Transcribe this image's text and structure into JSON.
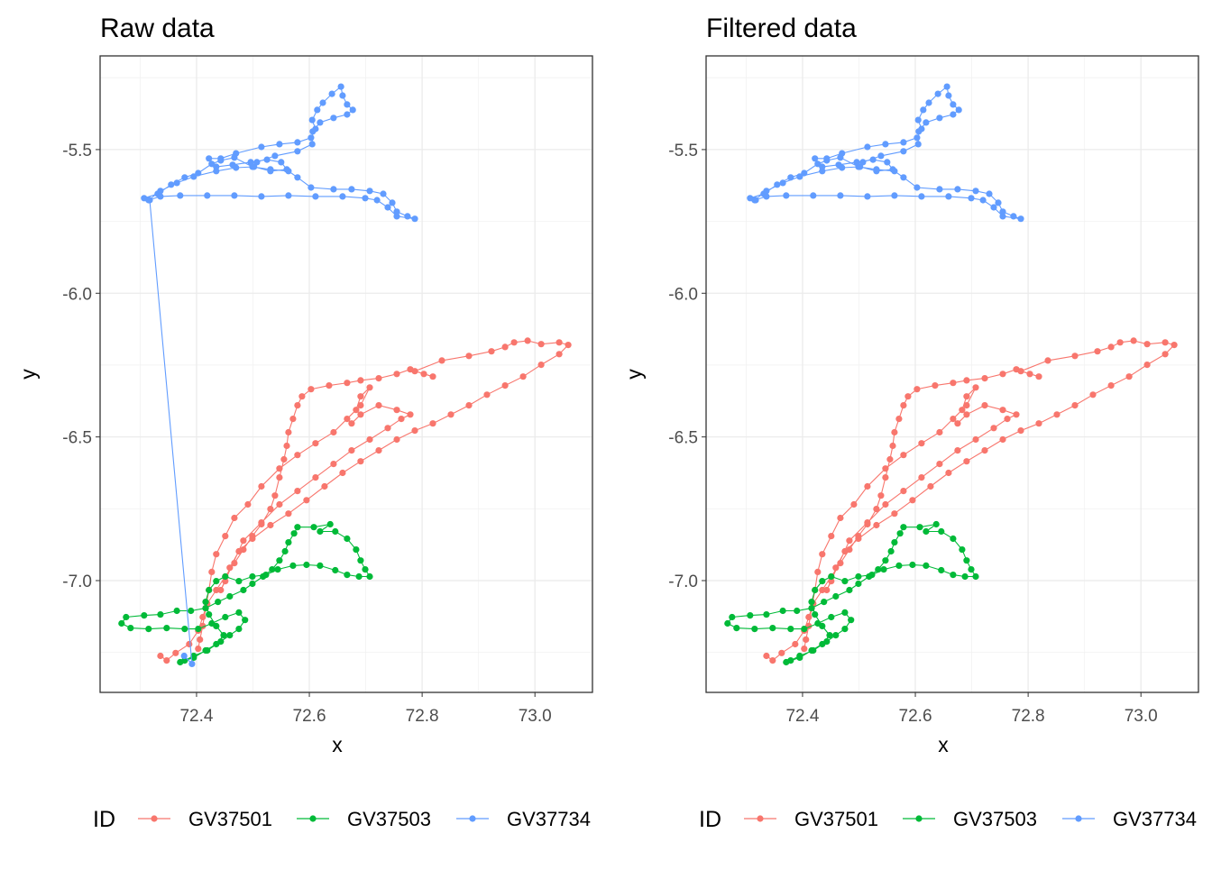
{
  "colors": {
    "GV37501": "#F8766D",
    "GV37503": "#00BA38",
    "GV37734": "#619CFF"
  },
  "legend": {
    "title": "ID",
    "entries": [
      "GV37501",
      "GV37503",
      "GV37734"
    ]
  },
  "chart_data": [
    {
      "type": "line",
      "title": "Raw data",
      "xlabel": "x",
      "ylabel": "y",
      "xlim": [
        72.229,
        73.102
      ],
      "ylim": [
        -7.389,
        -5.174
      ],
      "xticks": [
        72.4,
        72.6,
        72.8,
        73.0
      ],
      "xtick_labels": [
        "72.4",
        "72.6",
        "72.8",
        "73.0"
      ],
      "yticks": [
        -5.5,
        -6.0,
        -6.5,
        -7.0
      ],
      "ytick_labels": [
        "-5.5",
        "-6.0",
        "-6.5",
        "-7.0"
      ],
      "grid": true,
      "legend_position": "bottom",
      "series": [
        {
          "name": "GV37501",
          "points": [
            [
              72.336,
              -7.262
            ],
            [
              72.347,
              -7.278
            ],
            [
              72.363,
              -7.252
            ],
            [
              72.387,
              -7.221
            ],
            [
              72.403,
              -7.174
            ],
            [
              72.411,
              -7.127
            ],
            [
              72.419,
              -7.08
            ],
            [
              72.435,
              -7.033
            ],
            [
              72.451,
              -6.986
            ],
            [
              72.467,
              -6.939
            ],
            [
              72.483,
              -6.892
            ],
            [
              72.499,
              -6.845
            ],
            [
              72.515,
              -6.804
            ],
            [
              72.531,
              -6.751
            ],
            [
              72.539,
              -6.704
            ],
            [
              72.547,
              -6.641
            ],
            [
              72.555,
              -6.578
            ],
            [
              72.56,
              -6.531
            ],
            [
              72.563,
              -6.484
            ],
            [
              72.571,
              -6.437
            ],
            [
              72.579,
              -6.39
            ],
            [
              72.587,
              -6.359
            ],
            [
              72.603,
              -6.334
            ],
            [
              72.635,
              -6.321
            ],
            [
              72.667,
              -6.312
            ],
            [
              72.691,
              -6.303
            ],
            [
              72.723,
              -6.296
            ],
            [
              72.755,
              -6.281
            ],
            [
              72.779,
              -6.265
            ],
            [
              72.803,
              -6.281
            ],
            [
              72.819,
              -6.29
            ],
            [
              72.787,
              -6.271
            ],
            [
              72.835,
              -6.234
            ],
            [
              72.883,
              -6.218
            ],
            [
              72.923,
              -6.202
            ],
            [
              72.947,
              -6.187
            ],
            [
              72.963,
              -6.171
            ],
            [
              72.987,
              -6.165
            ],
            [
              73.011,
              -6.177
            ],
            [
              73.043,
              -6.171
            ],
            [
              73.059,
              -6.18
            ],
            [
              73.043,
              -6.212
            ],
            [
              73.011,
              -6.249
            ],
            [
              72.979,
              -6.29
            ],
            [
              72.947,
              -6.321
            ],
            [
              72.915,
              -6.353
            ],
            [
              72.883,
              -6.39
            ],
            [
              72.851,
              -6.422
            ],
            [
              72.819,
              -6.453
            ],
            [
              72.787,
              -6.478
            ],
            [
              72.755,
              -6.509
            ],
            [
              72.723,
              -6.547
            ],
            [
              72.691,
              -6.585
            ],
            [
              72.659,
              -6.625
            ],
            [
              72.627,
              -6.672
            ],
            [
              72.595,
              -6.72
            ],
            [
              72.563,
              -6.767
            ],
            [
              72.531,
              -6.807
            ],
            [
              72.499,
              -6.854
            ],
            [
              72.475,
              -6.898
            ],
            [
              72.459,
              -6.955
            ],
            [
              72.451,
              -7.002
            ],
            [
              72.443,
              -7.033
            ],
            [
              72.483,
              -6.861
            ],
            [
              72.515,
              -6.798
            ],
            [
              72.547,
              -6.735
            ],
            [
              72.579,
              -6.688
            ],
            [
              72.611,
              -6.641
            ],
            [
              72.643,
              -6.594
            ],
            [
              72.675,
              -6.547
            ],
            [
              72.707,
              -6.509
            ],
            [
              72.739,
              -6.469
            ],
            [
              72.763,
              -6.437
            ],
            [
              72.779,
              -6.422
            ],
            [
              72.755,
              -6.406
            ],
            [
              72.723,
              -6.39
            ],
            [
              72.691,
              -6.422
            ],
            [
              72.675,
              -6.453
            ],
            [
              72.667,
              -6.437
            ],
            [
              72.683,
              -6.406
            ],
            [
              72.691,
              -6.359
            ],
            [
              72.707,
              -6.328
            ],
            [
              72.691,
              -6.39
            ],
            [
              72.643,
              -6.484
            ],
            [
              72.611,
              -6.522
            ],
            [
              72.579,
              -6.563
            ],
            [
              72.547,
              -6.61
            ],
            [
              72.515,
              -6.672
            ],
            [
              72.491,
              -6.735
            ],
            [
              72.467,
              -6.782
            ],
            [
              72.451,
              -6.845
            ],
            [
              72.435,
              -6.908
            ],
            [
              72.427,
              -6.97
            ],
            [
              72.422,
              -7.033
            ],
            [
              72.416,
              -7.096
            ],
            [
              72.411,
              -7.158
            ],
            [
              72.406,
              -7.205
            ],
            [
              72.403,
              -7.237
            ]
          ]
        },
        {
          "name": "GV37503",
          "points": [
            [
              72.379,
              -7.278
            ],
            [
              72.395,
              -7.262
            ],
            [
              72.419,
              -7.243
            ],
            [
              72.443,
              -7.212
            ],
            [
              72.459,
              -7.19
            ],
            [
              72.475,
              -7.168
            ],
            [
              72.486,
              -7.137
            ],
            [
              72.475,
              -7.111
            ],
            [
              72.451,
              -7.127
            ],
            [
              72.427,
              -7.149
            ],
            [
              72.403,
              -7.168
            ],
            [
              72.379,
              -7.168
            ],
            [
              72.347,
              -7.165
            ],
            [
              72.315,
              -7.168
            ],
            [
              72.283,
              -7.165
            ],
            [
              72.267,
              -7.149
            ],
            [
              72.275,
              -7.127
            ],
            [
              72.307,
              -7.121
            ],
            [
              72.336,
              -7.118
            ],
            [
              72.365,
              -7.105
            ],
            [
              72.39,
              -7.105
            ],
            [
              72.416,
              -7.096
            ],
            [
              72.438,
              -7.074
            ],
            [
              72.459,
              -7.055
            ],
            [
              72.483,
              -7.033
            ],
            [
              72.499,
              -7.011
            ],
            [
              72.518,
              -6.986
            ],
            [
              72.534,
              -6.961
            ],
            [
              72.547,
              -6.93
            ],
            [
              72.557,
              -6.898
            ],
            [
              72.563,
              -6.867
            ],
            [
              72.573,
              -6.836
            ],
            [
              72.579,
              -6.814
            ],
            [
              72.608,
              -6.814
            ],
            [
              72.637,
              -6.804
            ],
            [
              72.619,
              -6.829
            ],
            [
              72.646,
              -6.829
            ],
            [
              72.667,
              -6.854
            ],
            [
              72.683,
              -6.892
            ],
            [
              72.691,
              -6.93
            ],
            [
              72.699,
              -6.961
            ],
            [
              72.707,
              -6.986
            ],
            [
              72.688,
              -6.986
            ],
            [
              72.667,
              -6.98
            ],
            [
              72.646,
              -6.964
            ],
            [
              72.619,
              -6.948
            ],
            [
              72.595,
              -6.945
            ],
            [
              72.571,
              -6.948
            ],
            [
              72.544,
              -6.961
            ],
            [
              72.523,
              -6.98
            ],
            [
              72.499,
              -6.986
            ],
            [
              72.475,
              -7.002
            ],
            [
              72.451,
              -6.986
            ],
            [
              72.435,
              -7.002
            ],
            [
              72.422,
              -7.033
            ],
            [
              72.416,
              -7.074
            ],
            [
              72.422,
              -7.118
            ],
            [
              72.435,
              -7.158
            ],
            [
              72.448,
              -7.19
            ],
            [
              72.435,
              -7.221
            ],
            [
              72.416,
              -7.243
            ],
            [
              72.395,
              -7.268
            ],
            [
              72.371,
              -7.284
            ]
          ]
        },
        {
          "name": "GV37734",
          "points": [
            [
              72.378,
              -7.262
            ],
            [
              72.392,
              -7.29
            ],
            [
              72.317,
              -5.676
            ],
            [
              72.307,
              -5.669
            ],
            [
              72.331,
              -5.654
            ],
            [
              72.355,
              -5.622
            ],
            [
              72.379,
              -5.597
            ],
            [
              72.403,
              -5.582
            ],
            [
              72.427,
              -5.55
            ],
            [
              72.443,
              -5.538
            ],
            [
              72.467,
              -5.528
            ],
            [
              72.499,
              -5.56
            ],
            [
              72.531,
              -5.569
            ],
            [
              72.563,
              -5.575
            ],
            [
              72.579,
              -5.597
            ],
            [
              72.603,
              -5.632
            ],
            [
              72.643,
              -5.638
            ],
            [
              72.675,
              -5.638
            ],
            [
              72.707,
              -5.644
            ],
            [
              72.731,
              -5.654
            ],
            [
              72.747,
              -5.685
            ],
            [
              72.755,
              -5.716
            ],
            [
              72.774,
              -5.732
            ],
            [
              72.787,
              -5.741
            ],
            [
              72.755,
              -5.732
            ],
            [
              72.739,
              -5.701
            ],
            [
              72.72,
              -5.676
            ],
            [
              72.699,
              -5.669
            ],
            [
              72.659,
              -5.663
            ],
            [
              72.611,
              -5.663
            ],
            [
              72.563,
              -5.66
            ],
            [
              72.515,
              -5.663
            ],
            [
              72.467,
              -5.66
            ],
            [
              72.419,
              -5.66
            ],
            [
              72.371,
              -5.66
            ],
            [
              72.336,
              -5.663
            ],
            [
              72.315,
              -5.676
            ],
            [
              72.336,
              -5.644
            ],
            [
              72.365,
              -5.616
            ],
            [
              72.395,
              -5.594
            ],
            [
              72.435,
              -5.575
            ],
            [
              72.47,
              -5.563
            ],
            [
              72.502,
              -5.56
            ],
            [
              72.531,
              -5.575
            ],
            [
              72.56,
              -5.569
            ],
            [
              72.55,
              -5.544
            ],
            [
              72.525,
              -5.535
            ],
            [
              72.496,
              -5.544
            ],
            [
              72.464,
              -5.553
            ],
            [
              72.435,
              -5.56
            ],
            [
              72.422,
              -5.531
            ],
            [
              72.443,
              -5.531
            ],
            [
              72.47,
              -5.513
            ],
            [
              72.515,
              -5.491
            ],
            [
              72.547,
              -5.481
            ],
            [
              72.579,
              -5.475
            ],
            [
              72.603,
              -5.459
            ],
            [
              72.611,
              -5.428
            ],
            [
              72.605,
              -5.397
            ],
            [
              72.614,
              -5.362
            ],
            [
              72.624,
              -5.337
            ],
            [
              72.64,
              -5.306
            ],
            [
              72.656,
              -5.281
            ],
            [
              72.659,
              -5.312
            ],
            [
              72.667,
              -5.343
            ],
            [
              72.677,
              -5.362
            ],
            [
              72.667,
              -5.378
            ],
            [
              72.643,
              -5.39
            ],
            [
              72.619,
              -5.406
            ],
            [
              72.606,
              -5.437
            ],
            [
              72.605,
              -5.481
            ],
            [
              72.579,
              -5.506
            ],
            [
              72.539,
              -5.522
            ],
            [
              72.507,
              -5.544
            ]
          ]
        }
      ]
    },
    {
      "type": "line",
      "title": "Filtered data",
      "xlabel": "x",
      "ylabel": "y",
      "xlim": [
        72.229,
        73.102
      ],
      "ylim": [
        -7.389,
        -5.174
      ],
      "xticks": [
        72.4,
        72.6,
        72.8,
        73.0
      ],
      "xtick_labels": [
        "72.4",
        "72.6",
        "72.8",
        "73.0"
      ],
      "yticks": [
        -5.5,
        -6.0,
        -6.5,
        -7.0
      ],
      "ytick_labels": [
        "-5.5",
        "-6.0",
        "-6.5",
        "-7.0"
      ],
      "grid": true,
      "legend_position": "bottom",
      "series": [
        {
          "name": "GV37501",
          "same_as": "raw"
        },
        {
          "name": "GV37503",
          "same_as": "raw"
        },
        {
          "name": "GV37734",
          "same_as_raw_without_first": 2
        }
      ]
    }
  ]
}
